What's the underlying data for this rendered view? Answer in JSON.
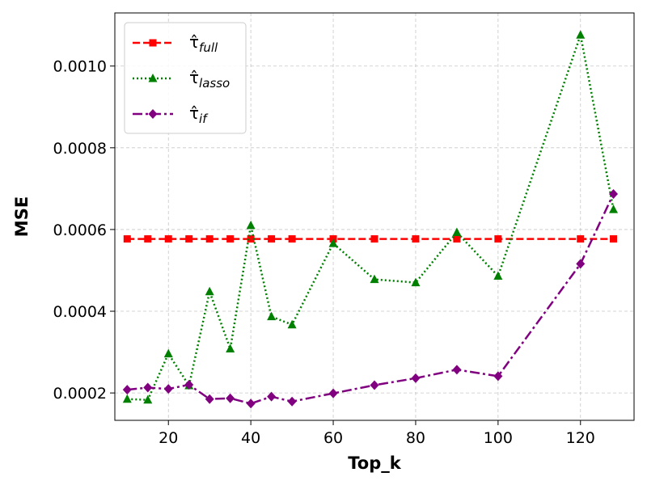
{
  "chart_data": {
    "type": "line",
    "xlabel": "Top_k",
    "ylabel": "MSE",
    "xlim": [
      7,
      133
    ],
    "ylim": [
      0.000133,
      0.00113
    ],
    "xticks": [
      20,
      40,
      60,
      80,
      100,
      120
    ],
    "xtick_labels": [
      "20",
      "40",
      "60",
      "80",
      "100",
      "120"
    ],
    "yticks": [
      0.0002,
      0.0004,
      0.0006,
      0.0008,
      0.001
    ],
    "ytick_labels": [
      "0.0002",
      "0.0004",
      "0.0006",
      "0.0008",
      "0.0010"
    ],
    "grid": true,
    "legend_position": "upper-left",
    "x": [
      10,
      15,
      20,
      25,
      30,
      35,
      40,
      45,
      50,
      60,
      70,
      80,
      90,
      100,
      120,
      128
    ],
    "series": [
      {
        "name": "τ̂full",
        "name_main": "τ̂",
        "name_sub": "full",
        "color": "#ff0000",
        "dash": "dashed",
        "marker": "square",
        "values": [
          0.000577,
          0.000577,
          0.000577,
          0.000577,
          0.000577,
          0.000577,
          0.000577,
          0.000577,
          0.000577,
          0.000577,
          0.000577,
          0.000577,
          0.000577,
          0.000577,
          0.000577,
          0.000577
        ]
      },
      {
        "name": "τ̂lasso",
        "name_main": "τ̂",
        "name_sub": "lasso",
        "color": "#008000",
        "dash": "dotted",
        "marker": "triangle",
        "values": [
          0.000185,
          0.000183,
          0.000296,
          0.000218,
          0.000448,
          0.000308,
          0.00061,
          0.000387,
          0.000367,
          0.000566,
          0.000478,
          0.00047,
          0.000593,
          0.000486,
          0.001076,
          0.000649
        ]
      },
      {
        "name": "τ̂if",
        "name_main": "τ̂",
        "name_sub": "if",
        "color": "#800080",
        "dash": "dashdot",
        "marker": "diamond",
        "values": [
          0.000208,
          0.000213,
          0.00021,
          0.00022,
          0.000185,
          0.000187,
          0.000174,
          0.000191,
          0.000179,
          0.000199,
          0.000219,
          0.000236,
          0.000257,
          0.000241,
          0.000516,
          0.000687
        ]
      }
    ]
  }
}
